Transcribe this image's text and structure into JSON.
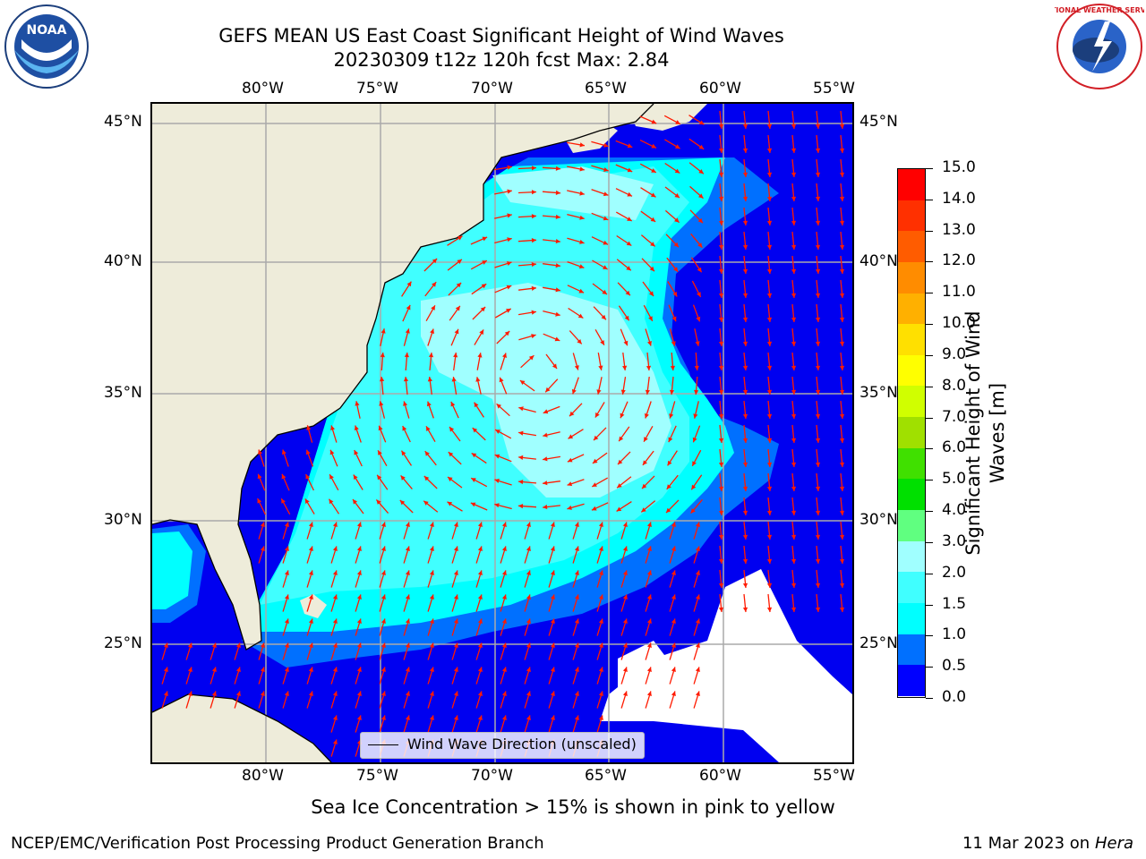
{
  "title": {
    "line1": "GEFS MEAN US East Coast Significant Height of Wind Waves",
    "line2": "20230309 t12z 120h fcst   Max: 2.84"
  },
  "axes": {
    "lon_labels": [
      "80°W",
      "75°W",
      "70°W",
      "65°W",
      "60°W",
      "55°W"
    ],
    "lat_labels": [
      "45°N",
      "40°N",
      "35°N",
      "30°N",
      "25°N"
    ]
  },
  "colorbar": {
    "label": "Significant Height of Wind Waves [m]",
    "label_line1": "Significant Height of Wind",
    "label_line2": "Waves [m]",
    "ticks": [
      "0.0",
      "0.5",
      "1.0",
      "1.5",
      "2.0",
      "3.0",
      "4.0",
      "5.0",
      "6.0",
      "7.0",
      "8.0",
      "9.0",
      "10.0",
      "11.0",
      "12.0",
      "13.0",
      "14.0",
      "15.0"
    ],
    "colors": [
      "#0000ff",
      "#0070ff",
      "#00ffff",
      "#40ffff",
      "#a0ffff",
      "#60ff80",
      "#00e000",
      "#40e000",
      "#a0e000",
      "#d0ff00",
      "#ffff00",
      "#ffe000",
      "#ffb000",
      "#ff8c00",
      "#ff5c00",
      "#ff3000",
      "#ff0000"
    ]
  },
  "legend": {
    "text": "Wind Wave Direction (unscaled)"
  },
  "note": "Sea Ice Concentration > 15% is shown in pink to yellow",
  "footer": {
    "left": "NCEP/EMC/Verification Post Processing Product Generation Branch",
    "right_prefix": "11 Mar 2023 on",
    "right_host": "Hera"
  },
  "logos": {
    "noaa": "NOAA",
    "nws": "NATIONAL WEATHER SERVICE"
  },
  "map_style": {
    "land": "#eeecda",
    "ocean_low": "#0000f0",
    "grid": "#aaaaaa",
    "arrow": "#ff1a00"
  }
}
